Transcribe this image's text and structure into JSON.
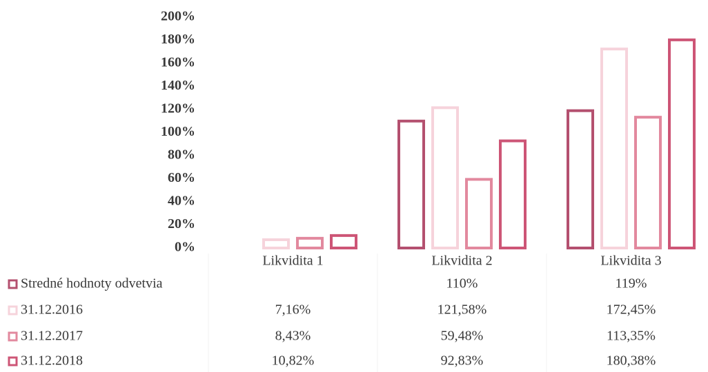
{
  "chart_data": {
    "type": "bar",
    "categories": [
      "Likvidita 1",
      "Likvidita 2",
      "Likvidita 3"
    ],
    "series": [
      {
        "name": "Stredné hodnoty odvetvia",
        "color": "#b4506f",
        "values": [
          null,
          110,
          119
        ],
        "value_labels": [
          null,
          "110%",
          "119%"
        ]
      },
      {
        "name": "31.12.2016",
        "color": "#f6d3db",
        "values": [
          7.16,
          121.58,
          172.45
        ],
        "value_labels": [
          "7,16%",
          "121,58%",
          "172,45%"
        ]
      },
      {
        "name": "31.12.2017",
        "color": "#e2899e",
        "values": [
          8.43,
          59.48,
          113.35
        ],
        "value_labels": [
          "8,43%",
          "59,48%",
          "113,35%"
        ]
      },
      {
        "name": "31.12.2018",
        "color": "#cd5576",
        "values": [
          10.82,
          92.83,
          180.38
        ],
        "value_labels": [
          "10,82%",
          "92,83%",
          "180,38%"
        ]
      }
    ],
    "ylim": [
      0,
      200
    ],
    "yticks": [
      {
        "value": 0,
        "label": "0%"
      },
      {
        "value": 20,
        "label": "20%"
      },
      {
        "value": 40,
        "label": "40%"
      },
      {
        "value": 60,
        "label": "60%"
      },
      {
        "value": 80,
        "label": "80%"
      },
      {
        "value": 100,
        "label": "100%"
      },
      {
        "value": 120,
        "label": "120%"
      },
      {
        "value": 140,
        "label": "140%"
      },
      {
        "value": 160,
        "label": "160%"
      },
      {
        "value": 180,
        "label": "180%"
      },
      {
        "value": 200,
        "label": "200%"
      }
    ],
    "grid": false
  }
}
